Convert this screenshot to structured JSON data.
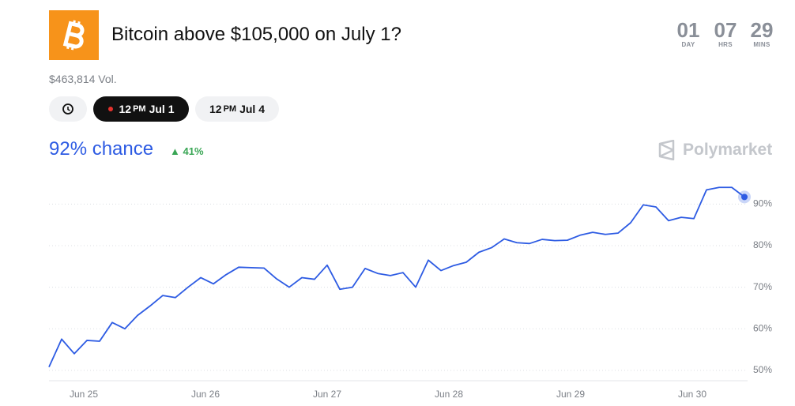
{
  "header": {
    "title": "Bitcoin above $105,000 on July 1?",
    "volume": "$463,814 Vol.",
    "countdown": [
      {
        "value": "01",
        "unit": "DAY"
      },
      {
        "value": "07",
        "unit": "HRS"
      },
      {
        "value": "29",
        "unit": "MINS"
      }
    ]
  },
  "tabs": [
    {
      "time": "12",
      "suffix": "PM",
      "date": "Jul 1"
    },
    {
      "time": "12",
      "suffix": "PM",
      "date": "Jul 4"
    }
  ],
  "chance": "92% chance",
  "change": "41%",
  "brand": "Polymarket",
  "chart_data": {
    "type": "line",
    "color": "#2d5be3",
    "values": [
      50.8,
      57.5,
      54,
      57.2,
      57,
      61.5,
      60,
      63.2,
      65.5,
      68,
      67.5,
      70,
      72.3,
      70.8,
      73,
      74.8,
      74.7,
      74.6,
      72,
      70,
      72.3,
      71.9,
      75.3,
      69.5,
      70,
      74.5,
      73.3,
      72.8,
      73.5,
      70,
      76.5,
      74,
      75.2,
      76,
      78.4,
      79.5,
      81.6,
      80.7,
      80.5,
      81.5,
      81.2,
      81.3,
      82.5,
      83.2,
      82.7,
      83,
      85.5,
      89.8,
      89.3,
      86,
      86.8,
      86.5,
      93.4,
      94,
      94,
      91.7
    ],
    "x_labels": [
      "Jun 25",
      "Jun 26",
      "Jun 27",
      "Jun 28",
      "Jun 29",
      "Jun 30"
    ],
    "ylim": [
      47.5,
      95
    ],
    "yticks": [
      {
        "value": 50,
        "label": "50%"
      },
      {
        "value": 60,
        "label": "60%"
      },
      {
        "value": 70,
        "label": "70%"
      },
      {
        "value": 80,
        "label": "80%"
      },
      {
        "value": 90,
        "label": "90%"
      }
    ],
    "grid": true
  }
}
